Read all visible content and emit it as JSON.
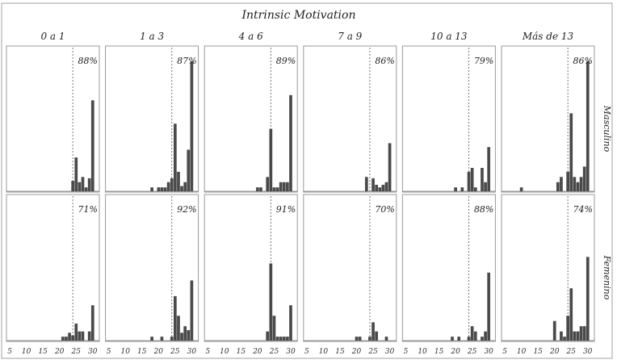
{
  "chart_data": {
    "type": "bar",
    "title": "Intrinsic Motivation",
    "columns": [
      "0 a 1",
      "1 a 3",
      "4 a 6",
      "7 a 9",
      "10 a 13",
      "Más de 13"
    ],
    "rows": [
      "Masculino",
      "Femenino"
    ],
    "x_ticks": [
      5,
      10,
      15,
      20,
      25,
      30
    ],
    "xlim": [
      4,
      32
    ],
    "ylim": [
      0,
      1
    ],
    "reference_line_x": 24,
    "panels": [
      {
        "row": "Masculino",
        "column": "0 a 1",
        "percent_label": "88%",
        "x": [
          24,
          25,
          26,
          27,
          28,
          29,
          30
        ],
        "values": [
          0.08,
          0.26,
          0.07,
          0.11,
          0.03,
          0.1,
          0.7
        ]
      },
      {
        "row": "Masculino",
        "column": "1 a 3",
        "percent_label": "87%",
        "x": [
          18,
          20,
          21,
          22,
          23,
          24,
          25,
          26,
          27,
          28,
          29,
          30
        ],
        "values": [
          0.03,
          0.03,
          0.03,
          0.03,
          0.07,
          0.1,
          0.52,
          0.15,
          0.04,
          0.07,
          0.32,
          1.0
        ]
      },
      {
        "row": "Masculino",
        "column": "4 a 6",
        "percent_label": "89%",
        "x": [
          20,
          21,
          23,
          24,
          25,
          26,
          27,
          28,
          29,
          30
        ],
        "values": [
          0.03,
          0.03,
          0.11,
          0.48,
          0.03,
          0.03,
          0.07,
          0.07,
          0.07,
          0.74
        ]
      },
      {
        "row": "Masculino",
        "column": "7 a 9",
        "percent_label": "86%",
        "x": [
          23,
          25,
          26,
          27,
          28,
          29,
          30
        ],
        "values": [
          0.11,
          0.1,
          0.05,
          0.03,
          0.05,
          0.07,
          0.37
        ]
      },
      {
        "row": "Masculino",
        "column": "10 a 13",
        "percent_label": "79%",
        "x": [
          20,
          22,
          24,
          25,
          26,
          28,
          29,
          30
        ],
        "values": [
          0.03,
          0.03,
          0.15,
          0.18,
          0.03,
          0.18,
          0.07,
          0.34
        ]
      },
      {
        "row": "Masculino",
        "column": "Más de 13",
        "percent_label": "86%",
        "x": [
          10,
          21,
          22,
          24,
          25,
          26,
          27,
          28,
          29,
          30
        ],
        "values": [
          0.03,
          0.07,
          0.11,
          0.15,
          0.6,
          0.11,
          0.07,
          0.11,
          0.19,
          1.0
        ]
      },
      {
        "row": "Femenino",
        "column": "0 a 1",
        "percent_label": "71%",
        "x": [
          21,
          22,
          23,
          24,
          25,
          26,
          27,
          29,
          30
        ],
        "values": [
          0.03,
          0.03,
          0.06,
          0.04,
          0.13,
          0.07,
          0.07,
          0.07,
          0.27
        ]
      },
      {
        "row": "Femenino",
        "column": "1 a 3",
        "percent_label": "92%",
        "x": [
          18,
          21,
          24,
          25,
          26,
          27,
          28,
          29,
          30
        ],
        "values": [
          0.03,
          0.03,
          0.03,
          0.34,
          0.19,
          0.06,
          0.11,
          0.08,
          0.46
        ]
      },
      {
        "row": "Femenino",
        "column": "4 a 6",
        "percent_label": "91%",
        "x": [
          23,
          24,
          25,
          26,
          27,
          28,
          29,
          30
        ],
        "values": [
          0.07,
          0.59,
          0.19,
          0.03,
          0.03,
          0.03,
          0.03,
          0.27
        ]
      },
      {
        "row": "Femenino",
        "column": "7 a 9",
        "percent_label": "70%",
        "x": [
          20,
          21,
          24,
          25,
          26,
          29
        ],
        "values": [
          0.03,
          0.03,
          0.03,
          0.14,
          0.07,
          0.03
        ]
      },
      {
        "row": "Femenino",
        "column": "10 a 13",
        "percent_label": "88%",
        "x": [
          19,
          21,
          24,
          25,
          26,
          28,
          29,
          30
        ],
        "values": [
          0.03,
          0.03,
          0.03,
          0.11,
          0.07,
          0.03,
          0.07,
          0.52
        ]
      },
      {
        "row": "Femenino",
        "column": "Más de 13",
        "percent_label": "74%",
        "x": [
          20,
          22,
          23,
          24,
          25,
          26,
          27,
          28,
          29,
          30
        ],
        "values": [
          0.15,
          0.07,
          0.03,
          0.19,
          0.4,
          0.07,
          0.07,
          0.11,
          0.11,
          0.64
        ]
      }
    ]
  }
}
